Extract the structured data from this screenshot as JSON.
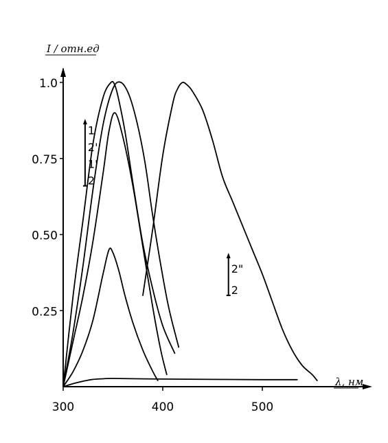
{
  "chart_data": {
    "type": "line",
    "title": "",
    "xlabel": "λ, нм",
    "ylabel": "I / отн.ед",
    "xlim": [
      300,
      560
    ],
    "ylim": [
      0,
      1.0
    ],
    "x_ticks": [
      300,
      400,
      500
    ],
    "x_tick_labels": [
      "300",
      "400",
      "500"
    ],
    "y_ticks": [
      0.25,
      0.5,
      0.75,
      1.0
    ],
    "y_tick_labels": [
      "0.25",
      "0.50",
      "0.75",
      "1.0"
    ],
    "grid": false,
    "legend": "none",
    "series": [
      {
        "x": [
          300,
          310,
          320,
          330,
          340,
          348,
          352,
          356,
          362,
          370,
          380,
          390,
          400,
          412
        ],
        "y": [
          0.0,
          0.3,
          0.55,
          0.8,
          0.95,
          1.0,
          0.99,
          0.94,
          0.84,
          0.67,
          0.47,
          0.32,
          0.2,
          0.11
        ]
      },
      {
        "x": [
          300,
          310,
          320,
          330,
          340,
          350,
          358,
          366,
          374,
          382,
          390,
          398,
          406,
          416
        ],
        "y": [
          0.0,
          0.18,
          0.4,
          0.65,
          0.86,
          0.98,
          1.0,
          0.96,
          0.87,
          0.74,
          0.56,
          0.4,
          0.26,
          0.13
        ]
      },
      {
        "x": [
          300,
          310,
          320,
          330,
          340,
          346,
          350,
          356,
          362,
          370,
          380,
          390,
          395
        ],
        "y": [
          0.0,
          0.05,
          0.12,
          0.22,
          0.37,
          0.45,
          0.44,
          0.38,
          0.3,
          0.21,
          0.12,
          0.05,
          0.02
        ]
      },
      {
        "x": [
          300,
          310,
          320,
          330,
          340,
          346,
          352,
          360,
          370,
          380,
          390,
          398,
          404
        ],
        "y": [
          0.0,
          0.15,
          0.3,
          0.48,
          0.7,
          0.84,
          0.9,
          0.82,
          0.66,
          0.46,
          0.26,
          0.12,
          0.04
        ]
      },
      {
        "x": [
          380,
          390,
          400,
          410,
          415,
          420,
          425,
          430,
          440,
          450,
          460,
          470,
          480,
          490,
          500,
          510,
          520,
          530,
          540,
          550,
          555
        ],
        "y": [
          0.3,
          0.52,
          0.76,
          0.93,
          0.98,
          1.0,
          0.99,
          0.97,
          0.91,
          0.81,
          0.69,
          0.61,
          0.53,
          0.45,
          0.37,
          0.28,
          0.19,
          0.12,
          0.07,
          0.04,
          0.02
        ]
      },
      {
        "x": [
          300,
          310,
          320,
          330,
          340,
          350,
          400,
          450,
          500,
          535
        ],
        "y": [
          0.0,
          0.01,
          0.018,
          0.024,
          0.026,
          0.027,
          0.025,
          0.024,
          0.023,
          0.023
        ]
      }
    ],
    "annotations": [
      {
        "labels": [
          "1",
          "2'",
          "1'",
          "2"
        ],
        "arrow": "up",
        "x": 322,
        "y_from": 0.66,
        "y_to": 0.88
      },
      {
        "labels": [
          "2\"",
          "2"
        ],
        "arrow": "up",
        "x": 466,
        "y_from": 0.3,
        "y_to": 0.44
      }
    ]
  }
}
